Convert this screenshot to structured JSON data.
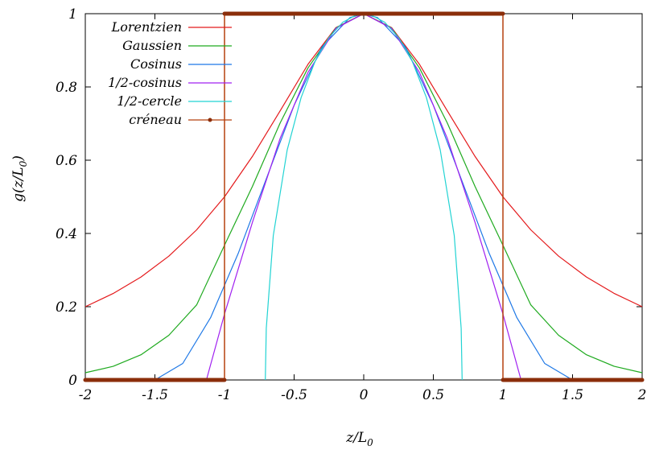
{
  "chart_data": {
    "type": "line",
    "title": "",
    "xlabel": "z/L",
    "xlabel_sub": "0",
    "ylabel": "g(z/L",
    "ylabel_sub": "0",
    "ylabel_end": ")",
    "xlim": [
      -2,
      2
    ],
    "ylim": [
      0,
      1
    ],
    "xticks": [
      -2,
      -1.5,
      -1,
      -0.5,
      0,
      0.5,
      1,
      1.5,
      2
    ],
    "xtick_labels": [
      "-2",
      "-1.5",
      "-1",
      "-0.5",
      "0",
      "0.5",
      "1",
      "1.5",
      "2"
    ],
    "yticks": [
      0,
      0.2,
      0.4,
      0.6,
      0.8,
      1
    ],
    "ytick_labels": [
      "0",
      "0.2",
      "0.4",
      "0.6",
      "0.8",
      "1"
    ],
    "grid": false,
    "legend_position": "top-left",
    "series": [
      {
        "name": "Lorentzien",
        "color": "#e41a1c",
        "x": [
          -2,
          -1.8,
          -1.6,
          -1.4,
          -1.2,
          -1,
          -0.8,
          -0.6,
          -0.4,
          -0.2,
          0,
          0.2,
          0.4,
          0.6,
          0.8,
          1,
          1.2,
          1.4,
          1.6,
          1.8,
          2
        ],
        "y": [
          0.2,
          0.236,
          0.281,
          0.338,
          0.41,
          0.5,
          0.61,
          0.735,
          0.862,
          0.962,
          1,
          0.962,
          0.862,
          0.735,
          0.61,
          0.5,
          0.41,
          0.338,
          0.281,
          0.236,
          0.2
        ]
      },
      {
        "name": "Gaussien",
        "color": "#1faa1f",
        "x": [
          -2,
          -1.8,
          -1.6,
          -1.4,
          -1.2,
          -1,
          -0.8,
          -0.6,
          -0.4,
          -0.2,
          0,
          0.2,
          0.4,
          0.6,
          0.8,
          1,
          1.2,
          1.4,
          1.6,
          1.8,
          2
        ],
        "y": [
          0.0198,
          0.0371,
          0.0688,
          0.122,
          0.205,
          0.368,
          0.528,
          0.702,
          0.852,
          0.961,
          1,
          0.961,
          0.852,
          0.702,
          0.528,
          0.368,
          0.205,
          0.122,
          0.0688,
          0.0371,
          0.0198
        ]
      },
      {
        "name": "Cosinus",
        "color": "#1e78e6",
        "x": [
          -1.5,
          -1.3,
          -1.1,
          -0.9,
          -0.7,
          -0.5,
          -0.3,
          -0.1,
          0,
          0.1,
          0.3,
          0.5,
          0.7,
          0.9,
          1.1,
          1.3,
          1.5
        ],
        "y": [
          0,
          0.045,
          0.17,
          0.347,
          0.549,
          0.75,
          0.909,
          0.989,
          1,
          0.989,
          0.909,
          0.75,
          0.549,
          0.347,
          0.17,
          0.045,
          0
        ]
      },
      {
        "name": "1/2-cosinus",
        "color": "#a020f0",
        "x": [
          -1.13,
          -1,
          -0.8,
          -0.6,
          -0.4,
          -0.2,
          0,
          0.2,
          0.4,
          0.6,
          0.8,
          1,
          1.13
        ],
        "y": [
          0,
          0.18,
          0.43,
          0.66,
          0.84,
          0.96,
          1,
          0.96,
          0.84,
          0.66,
          0.43,
          0.18,
          0
        ]
      },
      {
        "name": "1/2-cercle",
        "color": "#22d3d3",
        "x": [
          -0.707,
          -0.7,
          -0.65,
          -0.55,
          -0.45,
          -0.35,
          -0.25,
          -0.15,
          -0.05,
          0,
          0.05,
          0.15,
          0.25,
          0.35,
          0.45,
          0.55,
          0.65,
          0.7,
          0.707
        ],
        "y": [
          0,
          0.141,
          0.394,
          0.628,
          0.771,
          0.869,
          0.935,
          0.977,
          0.997,
          1,
          0.997,
          0.977,
          0.935,
          0.869,
          0.771,
          0.628,
          0.394,
          0.141,
          0
        ]
      },
      {
        "name": "créneau",
        "color": "#b5400f",
        "x": [
          -2,
          -1,
          -1,
          1,
          1,
          2
        ],
        "y": [
          0,
          0,
          1,
          1,
          0,
          0
        ]
      }
    ]
  }
}
